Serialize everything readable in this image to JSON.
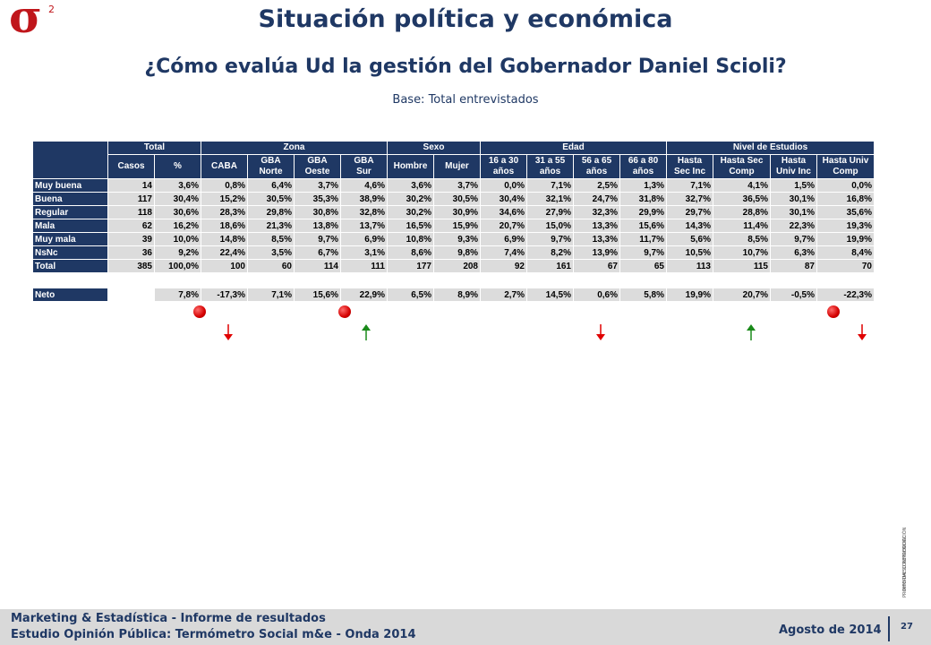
{
  "logo": {
    "symbol": "σ",
    "superscript": "2"
  },
  "title": "Situación política y económica",
  "subtitle": "¿Cómo evalúa Ud la gestión del Gobernador Daniel Scioli?",
  "base": "Base: Total entrevistados",
  "table": {
    "groups": [
      "Total",
      "Zona",
      "Sexo",
      "Edad",
      "Nivel de Estudios"
    ],
    "columns": [
      [
        "Casos"
      ],
      [
        "%"
      ],
      [
        "CABA"
      ],
      [
        "GBA",
        "Norte"
      ],
      [
        "GBA",
        "Oeste"
      ],
      [
        "GBA",
        "Sur"
      ],
      [
        "Hombre"
      ],
      [
        "Mujer"
      ],
      [
        "16 a 30",
        "años"
      ],
      [
        "31 a 55",
        "años"
      ],
      [
        "56 a 65",
        "años"
      ],
      [
        "66 a 80",
        "años"
      ],
      [
        "Hasta",
        "Sec Inc"
      ],
      [
        "Hasta Sec",
        "Comp"
      ],
      [
        "Hasta",
        "Univ Inc"
      ],
      [
        "Hasta Univ",
        "Comp"
      ]
    ],
    "rows": [
      {
        "label": "Muy buena",
        "values": [
          "14",
          "3,6%",
          "0,8%",
          "6,4%",
          "3,7%",
          "4,6%",
          "3,6%",
          "3,7%",
          "0,0%",
          "7,1%",
          "2,5%",
          "1,3%",
          "7,1%",
          "4,1%",
          "1,5%",
          "0,0%"
        ]
      },
      {
        "label": "Buena",
        "values": [
          "117",
          "30,4%",
          "15,2%",
          "30,5%",
          "35,3%",
          "38,9%",
          "30,2%",
          "30,5%",
          "30,4%",
          "32,1%",
          "24,7%",
          "31,8%",
          "32,7%",
          "36,5%",
          "30,1%",
          "16,8%"
        ]
      },
      {
        "label": "Regular",
        "values": [
          "118",
          "30,6%",
          "28,3%",
          "29,8%",
          "30,8%",
          "32,8%",
          "30,2%",
          "30,9%",
          "34,6%",
          "27,9%",
          "32,3%",
          "29,9%",
          "29,7%",
          "28,8%",
          "30,1%",
          "35,6%"
        ]
      },
      {
        "label": "Mala",
        "values": [
          "62",
          "16,2%",
          "18,6%",
          "21,3%",
          "13,8%",
          "13,7%",
          "16,5%",
          "15,9%",
          "20,7%",
          "15,0%",
          "13,3%",
          "15,6%",
          "14,3%",
          "11,4%",
          "22,3%",
          "19,3%"
        ]
      },
      {
        "label": "Muy mala",
        "values": [
          "39",
          "10,0%",
          "14,8%",
          "8,5%",
          "9,7%",
          "6,9%",
          "10,8%",
          "9,3%",
          "6,9%",
          "9,7%",
          "13,3%",
          "11,7%",
          "5,6%",
          "8,5%",
          "9,7%",
          "19,9%"
        ]
      },
      {
        "label": "NsNc",
        "values": [
          "36",
          "9,2%",
          "22,4%",
          "3,5%",
          "6,7%",
          "3,1%",
          "8,6%",
          "9,8%",
          "7,4%",
          "8,2%",
          "13,9%",
          "9,7%",
          "10,5%",
          "10,7%",
          "6,3%",
          "8,4%"
        ]
      },
      {
        "label": "Total",
        "values": [
          "385",
          "100,0%",
          "100",
          "60",
          "114",
          "111",
          "177",
          "208",
          "92",
          "161",
          "67",
          "65",
          "113",
          "115",
          "87",
          "70"
        ]
      }
    ],
    "neto": {
      "label": "Neto",
      "values": [
        "7,8%",
        "-17,3%",
        "7,1%",
        "15,6%",
        "22,9%",
        "6,5%",
        "8,9%",
        "2,7%",
        "14,5%",
        "0,6%",
        "5,8%",
        "19,9%",
        "20,7%",
        "-0,5%",
        "-22,3%"
      ]
    }
  },
  "markers": {
    "red_dot_color": "#e00000",
    "arrow_down_color": "#e00000",
    "arrow_up_color": "#1a8a1a",
    "arrows": [
      "down",
      "up",
      "down",
      "up",
      "down"
    ]
  },
  "confidential": [
    "INFORME CONFIDENCIAL",
    "PROHIBIDA SU REPRODUCCIÓN"
  ],
  "footer": {
    "line1": "Marketing & Estadística - Informe de resultados",
    "line2": "Estudio Opinión Pública: Termómetro Social m&e - Onda 2014",
    "date": "Agosto de 2014",
    "page": "27"
  }
}
